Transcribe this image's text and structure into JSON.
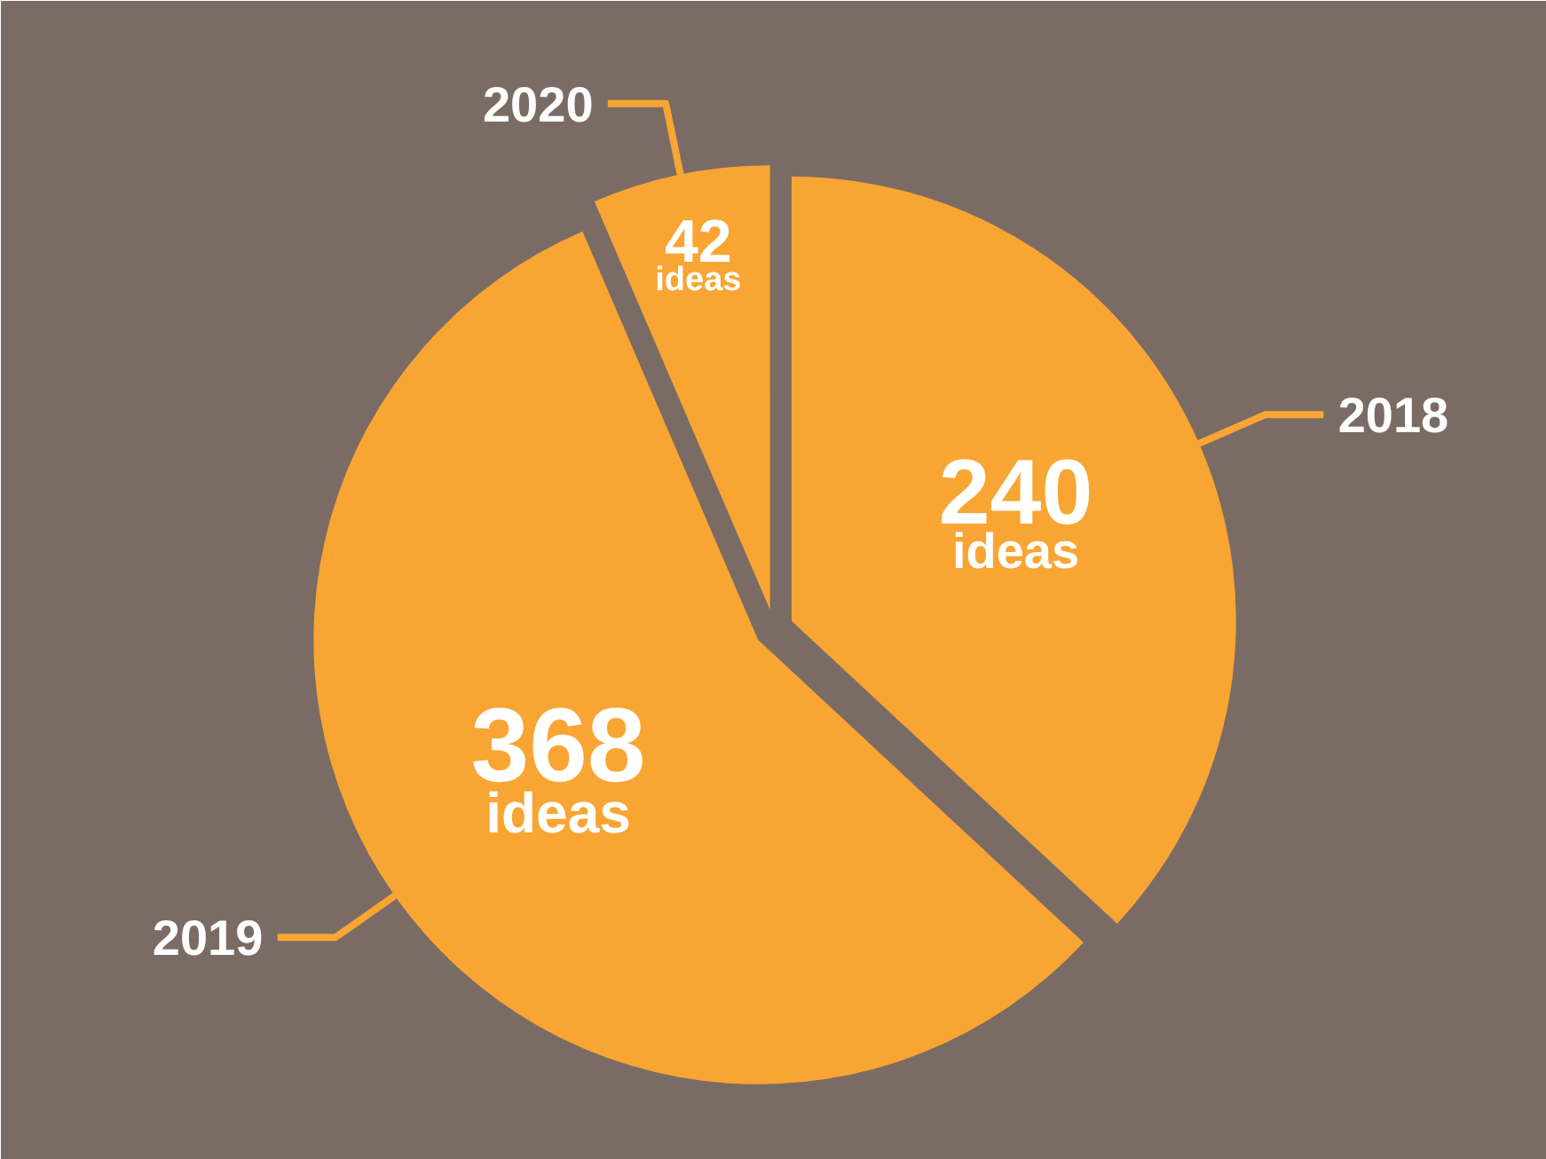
{
  "chart_data": {
    "type": "pie",
    "categories": [
      "2018",
      "2019",
      "2020"
    ],
    "values": [
      240,
      368,
      42
    ],
    "colors": [
      "#f9a533",
      "#f9a533",
      "#f9a533"
    ],
    "value_labels": [
      "240 ideas",
      "368 ideas",
      "42 ideas"
    ]
  }
}
